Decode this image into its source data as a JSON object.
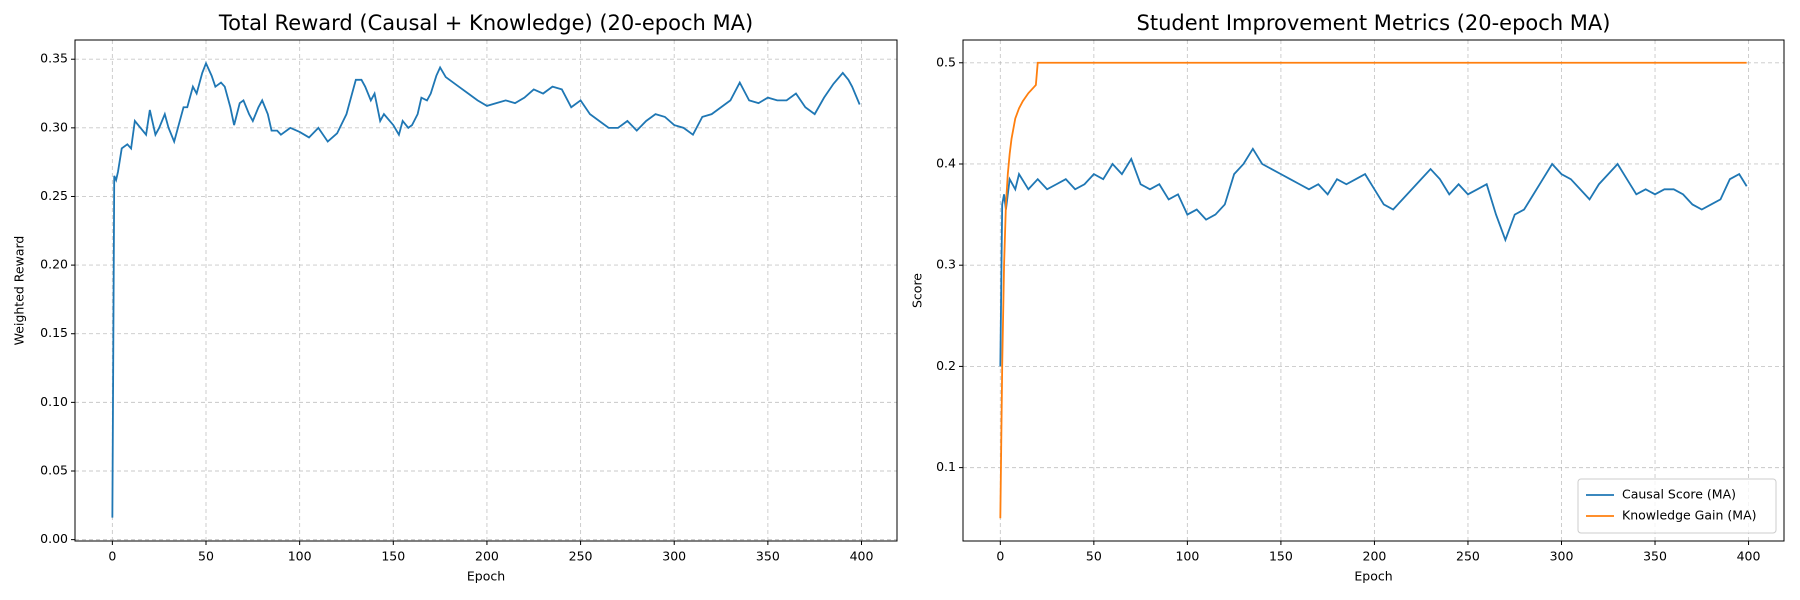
{
  "chart_data": [
    {
      "type": "line",
      "title": "Total Reward (Causal + Knowledge) (20-epoch MA)",
      "xlabel": "Epoch",
      "ylabel": "Weighted Reward",
      "xlim": [
        -19.95,
        418.95
      ],
      "xticks": [
        0,
        50,
        100,
        150,
        200,
        250,
        300,
        350,
        400
      ],
      "ylim": [
        -0.001,
        0.364
      ],
      "yticks": [
        {
          "value": 0,
          "label": "0.00"
        },
        0.05,
        {
          "value": 0.1,
          "label": "0.10"
        },
        0.15,
        {
          "value": 0.2,
          "label": "0.20"
        },
        0.25,
        {
          "value": 0.3,
          "label": "0.30"
        },
        0.35
      ],
      "grid": true,
      "series": [
        {
          "color": "#1f77b4",
          "x": [
            0,
            1,
            2,
            3,
            5,
            8,
            10,
            12,
            15,
            18,
            20,
            23,
            25,
            28,
            30,
            33,
            35,
            38,
            40,
            43,
            45,
            48,
            50,
            53,
            55,
            58,
            60,
            63,
            65,
            68,
            70,
            73,
            75,
            78,
            80,
            83,
            85,
            88,
            90,
            95,
            100,
            105,
            110,
            115,
            120,
            125,
            128,
            130,
            133,
            135,
            138,
            140,
            143,
            145,
            150,
            153,
            155,
            158,
            160,
            163,
            165,
            168,
            170,
            173,
            175,
            178,
            180,
            185,
            190,
            195,
            200,
            205,
            210,
            215,
            220,
            225,
            230,
            235,
            240,
            245,
            250,
            255,
            260,
            265,
            270,
            275,
            280,
            285,
            290,
            295,
            300,
            305,
            310,
            315,
            320,
            325,
            330,
            335,
            340,
            345,
            350,
            355,
            360,
            365,
            370,
            375,
            380,
            385,
            390,
            393,
            395,
            399
          ],
          "values": [
            0.016,
            0.265,
            0.262,
            0.268,
            0.285,
            0.288,
            0.285,
            0.305,
            0.3,
            0.295,
            0.313,
            0.295,
            0.3,
            0.31,
            0.3,
            0.29,
            0.3,
            0.315,
            0.315,
            0.33,
            0.325,
            0.34,
            0.347,
            0.338,
            0.33,
            0.333,
            0.33,
            0.315,
            0.302,
            0.318,
            0.32,
            0.31,
            0.305,
            0.315,
            0.32,
            0.31,
            0.298,
            0.298,
            0.295,
            0.3,
            0.297,
            0.293,
            0.3,
            0.29,
            0.296,
            0.31,
            0.325,
            0.335,
            0.335,
            0.33,
            0.32,
            0.325,
            0.305,
            0.31,
            0.302,
            0.295,
            0.305,
            0.3,
            0.302,
            0.31,
            0.322,
            0.32,
            0.325,
            0.338,
            0.344,
            0.337,
            0.335,
            0.33,
            0.325,
            0.32,
            0.316,
            0.318,
            0.32,
            0.318,
            0.322,
            0.328,
            0.325,
            0.33,
            0.328,
            0.315,
            0.32,
            0.31,
            0.305,
            0.3,
            0.3,
            0.305,
            0.298,
            0.305,
            0.31,
            0.308,
            0.302,
            0.3,
            0.295,
            0.308,
            0.31,
            0.315,
            0.32,
            0.333,
            0.32,
            0.318,
            0.322,
            0.32,
            0.32,
            0.325,
            0.315,
            0.31,
            0.322,
            0.332,
            0.34,
            0.335,
            0.33,
            0.317
          ]
        }
      ]
    },
    {
      "type": "line",
      "title": "Student Improvement Metrics (20-epoch MA)",
      "xlabel": "Epoch",
      "ylabel": "Score",
      "xlim": [
        -19.95,
        418.95
      ],
      "xticks": [
        0,
        50,
        100,
        150,
        200,
        250,
        300,
        350,
        400
      ],
      "ylim": [
        0.0275,
        0.5225
      ],
      "yticks": [
        0.1,
        0.2,
        0.3,
        0.4,
        0.5
      ],
      "grid": true,
      "legend": "lower right",
      "series": [
        {
          "name": "Causal Score (MA)",
          "color": "#1f77b4",
          "x": [
            0,
            1,
            2,
            3,
            5,
            8,
            10,
            15,
            20,
            25,
            30,
            35,
            40,
            45,
            50,
            55,
            60,
            65,
            70,
            75,
            80,
            85,
            90,
            95,
            100,
            105,
            110,
            115,
            120,
            125,
            130,
            135,
            140,
            145,
            150,
            155,
            160,
            165,
            170,
            175,
            180,
            185,
            190,
            195,
            200,
            205,
            210,
            215,
            220,
            225,
            230,
            235,
            240,
            245,
            250,
            255,
            260,
            265,
            270,
            275,
            280,
            285,
            290,
            295,
            300,
            305,
            310,
            315,
            320,
            325,
            330,
            335,
            340,
            345,
            350,
            355,
            360,
            365,
            370,
            375,
            380,
            385,
            390,
            395,
            399
          ],
          "values": [
            0.2,
            0.36,
            0.37,
            0.355,
            0.385,
            0.375,
            0.39,
            0.375,
            0.385,
            0.375,
            0.38,
            0.385,
            0.375,
            0.38,
            0.39,
            0.385,
            0.4,
            0.39,
            0.405,
            0.38,
            0.375,
            0.38,
            0.365,
            0.37,
            0.35,
            0.355,
            0.345,
            0.35,
            0.36,
            0.39,
            0.4,
            0.415,
            0.4,
            0.395,
            0.39,
            0.385,
            0.38,
            0.375,
            0.38,
            0.37,
            0.385,
            0.38,
            0.385,
            0.39,
            0.375,
            0.36,
            0.355,
            0.365,
            0.375,
            0.385,
            0.395,
            0.385,
            0.37,
            0.38,
            0.37,
            0.375,
            0.38,
            0.35,
            0.325,
            0.35,
            0.355,
            0.37,
            0.385,
            0.4,
            0.39,
            0.385,
            0.375,
            0.365,
            0.38,
            0.39,
            0.4,
            0.385,
            0.37,
            0.375,
            0.37,
            0.375,
            0.375,
            0.37,
            0.36,
            0.355,
            0.36,
            0.365,
            0.385,
            0.39,
            0.378
          ]
        },
        {
          "name": "Knowledge Gain (MA)",
          "color": "#ff7f0e",
          "x": [
            0,
            1,
            2,
            3,
            4,
            5,
            6,
            8,
            10,
            12,
            15,
            18,
            19,
            20,
            399
          ],
          "values": [
            0.05,
            0.2,
            0.3,
            0.36,
            0.39,
            0.41,
            0.425,
            0.445,
            0.455,
            0.462,
            0.47,
            0.476,
            0.478,
            0.5,
            0.5
          ]
        }
      ]
    }
  ]
}
